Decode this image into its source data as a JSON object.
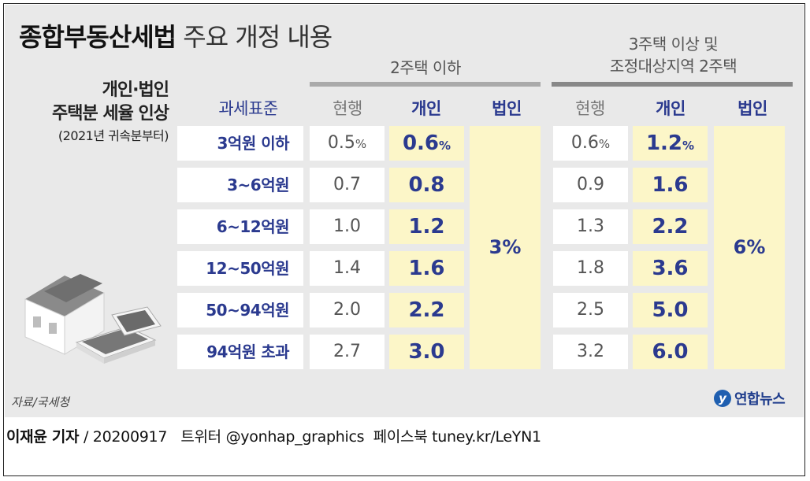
{
  "title": {
    "bold": "종합부동산세법",
    "light": "주요 개정 내용"
  },
  "side_note": {
    "line1": "개인·법인",
    "line2": "주택분 세율 인상",
    "line3": "(2021년 귀속분부터)"
  },
  "groups": {
    "g1": {
      "line1": "2주택 이하",
      "line2": ""
    },
    "g2": {
      "line1": "3주택 이상 및",
      "line2": "조정대상지역 2주택"
    }
  },
  "col_heads": {
    "base": "과세표준",
    "current": "현행",
    "individual": "개인",
    "corporate": "법인"
  },
  "rows": [
    {
      "label": "3억원 이하",
      "g1_cur": "0.5",
      "g1_new": "0.6",
      "g2_cur": "0.6",
      "g2_new": "1.2",
      "unit": "%"
    },
    {
      "label": "3~6억원",
      "g1_cur": "0.7",
      "g1_new": "0.8",
      "g2_cur": "0.9",
      "g2_new": "1.6"
    },
    {
      "label": "6~12억원",
      "g1_cur": "1.0",
      "g1_new": "1.2",
      "g2_cur": "1.3",
      "g2_new": "2.2"
    },
    {
      "label": "12~50억원",
      "g1_cur": "1.4",
      "g1_new": "1.6",
      "g2_cur": "1.8",
      "g2_new": "3.6"
    },
    {
      "label": "50~94억원",
      "g1_cur": "2.0",
      "g1_new": "2.2",
      "g2_cur": "2.5",
      "g2_new": "5.0"
    },
    {
      "label": "94억원 초과",
      "g1_cur": "2.7",
      "g1_new": "3.0",
      "g2_cur": "3.2",
      "g2_new": "6.0"
    }
  ],
  "corporate": {
    "g1": "3%",
    "g2": "6%"
  },
  "source": "자료/국세청",
  "logo": {
    "mark": "y",
    "text": "연합뉴스"
  },
  "credit": {
    "reporter": "이재윤 기자",
    "rest": " / 20200917   트위터 @yonhap_graphics  페이스북 tuney.kr/LeYN1"
  },
  "colors": {
    "navy": "#2b3a8f",
    "highlight": "#fcf6c8",
    "panel": "#e9e9e9"
  }
}
